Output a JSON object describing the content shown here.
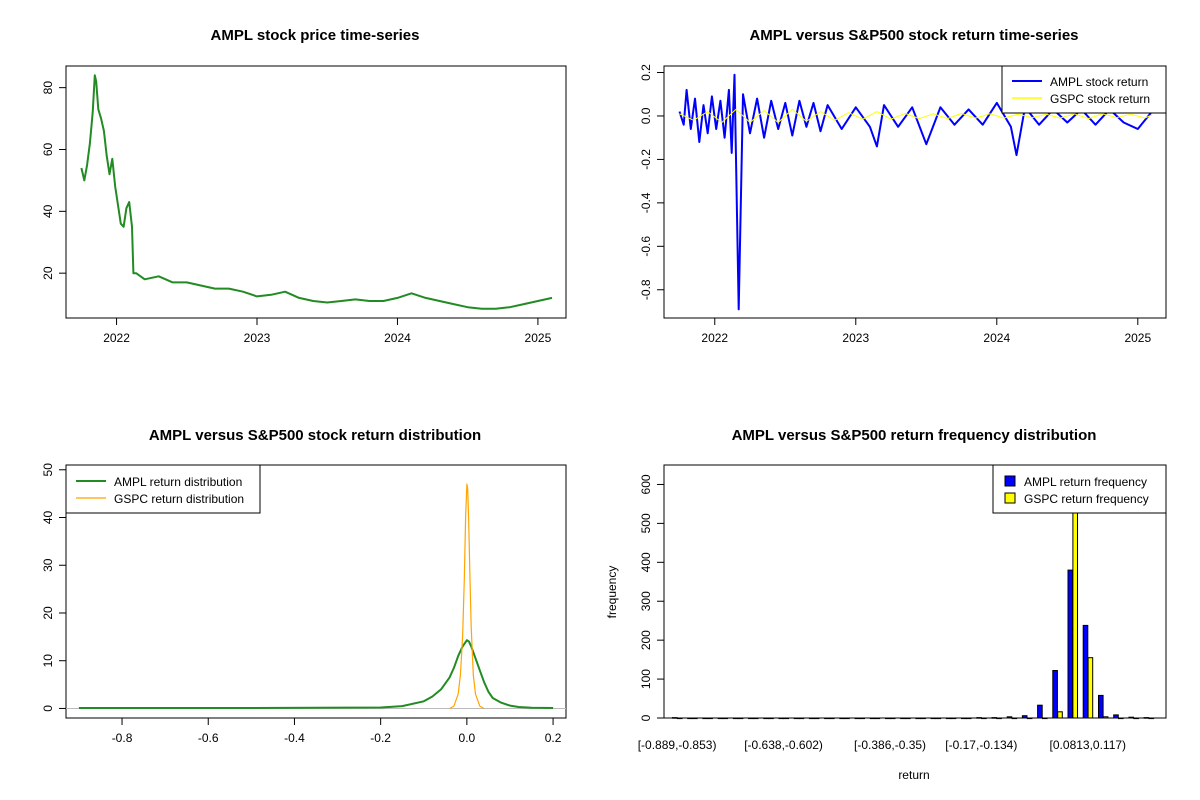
{
  "chart_data": [
    {
      "type": "line",
      "title": "AMPL stock price time-series",
      "xlabel": "",
      "ylabel": "",
      "x_ticks": [
        "2022",
        "2023",
        "2024",
        "2025"
      ],
      "xlim": [
        2021.64,
        2025.2
      ],
      "ylim": [
        5.5,
        87
      ],
      "y_ticks": [
        "20",
        "40",
        "60",
        "80"
      ],
      "series": [
        {
          "name": "AMPL stock price",
          "color": "#228B22",
          "x": [
            2021.75,
            2021.77,
            2021.79,
            2021.81,
            2021.83,
            2021.845,
            2021.855,
            2021.87,
            2021.89,
            2021.91,
            2021.93,
            2021.95,
            2021.97,
            2021.99,
            2022.01,
            2022.03,
            2022.05,
            2022.07,
            2022.09,
            2022.11,
            2022.12,
            2022.14,
            2022.2,
            2022.3,
            2022.4,
            2022.5,
            2022.6,
            2022.7,
            2022.8,
            2022.9,
            2023.0,
            2023.1,
            2023.2,
            2023.3,
            2023.4,
            2023.5,
            2023.6,
            2023.7,
            2023.8,
            2023.9,
            2024.0,
            2024.1,
            2024.2,
            2024.3,
            2024.4,
            2024.5,
            2024.6,
            2024.7,
            2024.8,
            2024.9,
            2025.0,
            2025.1
          ],
          "values": [
            54,
            50,
            55,
            62,
            72,
            84,
            82,
            73,
            70,
            66,
            58,
            52,
            57,
            48,
            42,
            36,
            35,
            41,
            43,
            35,
            20,
            20,
            18,
            19,
            17,
            17,
            16,
            15,
            15,
            14,
            12.5,
            13,
            14,
            12,
            11,
            10.5,
            11,
            11.5,
            11,
            11,
            12,
            13.5,
            12,
            11,
            10,
            9,
            8.5,
            8.5,
            9,
            10,
            11,
            12
          ]
        }
      ]
    },
    {
      "type": "line",
      "title": "AMPL versus S&P500 stock return time-series",
      "xlabel": "",
      "ylabel": "",
      "x_ticks": [
        "2022",
        "2023",
        "2024",
        "2025"
      ],
      "xlim": [
        2021.64,
        2025.2
      ],
      "ylim": [
        -0.93,
        0.23
      ],
      "y_ticks": [
        "-0.8",
        "-0.6",
        "-0.4",
        "-0.2",
        "0.0",
        "0.2"
      ],
      "legend": [
        "AMPL stock return",
        "GSPC stock return"
      ],
      "legend_position": "top-right",
      "series": [
        {
          "name": "AMPL stock return",
          "color": "#0000FF",
          "x": [
            2021.75,
            2021.78,
            2021.8,
            2021.83,
            2021.86,
            2021.89,
            2021.92,
            2021.95,
            2021.98,
            2022.01,
            2022.04,
            2022.07,
            2022.1,
            2022.12,
            2022.14,
            2022.17,
            2022.2,
            2022.25,
            2022.3,
            2022.35,
            2022.4,
            2022.45,
            2022.5,
            2022.55,
            2022.6,
            2022.65,
            2022.7,
            2022.75,
            2022.8,
            2022.9,
            2023.0,
            2023.1,
            2023.15,
            2023.2,
            2023.3,
            2023.4,
            2023.5,
            2023.6,
            2023.7,
            2023.8,
            2023.9,
            2024.0,
            2024.1,
            2024.14,
            2024.2,
            2024.3,
            2024.4,
            2024.5,
            2024.6,
            2024.7,
            2024.8,
            2024.9,
            2025.0,
            2025.1
          ],
          "values": [
            0.02,
            -0.04,
            0.12,
            -0.06,
            0.08,
            -0.12,
            0.05,
            -0.08,
            0.09,
            -0.06,
            0.07,
            -0.1,
            0.12,
            -0.17,
            0.19,
            -0.89,
            0.1,
            -0.08,
            0.08,
            -0.1,
            0.07,
            -0.06,
            0.06,
            -0.09,
            0.07,
            -0.05,
            0.06,
            -0.07,
            0.05,
            -0.06,
            0.04,
            -0.05,
            -0.14,
            0.05,
            -0.05,
            0.04,
            -0.13,
            0.04,
            -0.04,
            0.03,
            -0.04,
            0.06,
            -0.05,
            -0.18,
            0.04,
            -0.04,
            0.03,
            -0.03,
            0.03,
            -0.04,
            0.03,
            -0.03,
            -0.06,
            0.02
          ]
        },
        {
          "name": "GSPC stock return",
          "color": "#FFFF00",
          "x": [
            2021.75,
            2021.85,
            2021.95,
            2022.05,
            2022.15,
            2022.25,
            2022.35,
            2022.45,
            2022.55,
            2022.65,
            2022.75,
            2022.85,
            2022.95,
            2023.05,
            2023.15,
            2023.25,
            2023.35,
            2023.45,
            2023.55,
            2023.65,
            2023.75,
            2023.85,
            2023.95,
            2024.05,
            2024.15,
            2024.25,
            2024.35,
            2024.45,
            2024.55,
            2024.65,
            2024.75,
            2024.85,
            2024.95,
            2025.05,
            2025.1
          ],
          "values": [
            0.01,
            -0.02,
            0.02,
            -0.03,
            0.03,
            -0.03,
            0.025,
            -0.03,
            0.03,
            -0.025,
            0.02,
            -0.02,
            0.015,
            -0.015,
            0.02,
            -0.015,
            0.012,
            -0.012,
            0.01,
            -0.012,
            0.012,
            -0.01,
            0.01,
            -0.01,
            0.008,
            -0.008,
            0.008,
            -0.01,
            0.01,
            -0.012,
            0.01,
            -0.008,
            0.008,
            -0.01,
            0.005
          ]
        }
      ]
    },
    {
      "type": "line",
      "title": "AMPL versus S&P500 stock return distribution",
      "xlabel": "",
      "ylabel": "",
      "xlim": [
        -0.93,
        0.23
      ],
      "ylim": [
        -2,
        51
      ],
      "x_ticks": [
        "-0.8",
        "-0.6",
        "-0.4",
        "-0.2",
        "0.0",
        "0.2"
      ],
      "y_ticks": [
        "0",
        "10",
        "20",
        "30",
        "40",
        "50"
      ],
      "legend": [
        "AMPL return distribution",
        "GSPC return distribution"
      ],
      "legend_position": "top-left",
      "series": [
        {
          "name": "AMPL return distribution",
          "color": "#228B22",
          "x": [
            -0.9,
            -0.5,
            -0.2,
            -0.15,
            -0.1,
            -0.08,
            -0.06,
            -0.04,
            -0.03,
            -0.02,
            -0.01,
            0.0,
            0.005,
            0.01,
            0.02,
            0.03,
            0.04,
            0.05,
            0.06,
            0.08,
            0.1,
            0.12,
            0.15,
            0.2
          ],
          "values": [
            0.1,
            0.1,
            0.2,
            0.5,
            1.5,
            2.5,
            4,
            6.5,
            8.5,
            11,
            13,
            14.3,
            14,
            13,
            10.5,
            8,
            5.5,
            3.5,
            2.2,
            1.2,
            0.6,
            0.3,
            0.15,
            0.1
          ]
        },
        {
          "name": "GSPC return distribution",
          "color": "#FFA500",
          "x": [
            -0.04,
            -0.03,
            -0.02,
            -0.015,
            -0.01,
            -0.006,
            -0.003,
            0.0,
            0.002,
            0.004,
            0.007,
            0.01,
            0.015,
            0.02,
            0.03,
            0.04
          ],
          "values": [
            0,
            0.5,
            3,
            7,
            15,
            27,
            40,
            47,
            46,
            40,
            28,
            17,
            7,
            3,
            0.5,
            0
          ]
        }
      ]
    },
    {
      "type": "bar",
      "title": "AMPL versus S&P500 return frequency distribution",
      "xlabel": "return",
      "ylabel": "frequency",
      "ylim": [
        0,
        650
      ],
      "y_ticks": [
        "0",
        "100",
        "200",
        "300",
        "400",
        "500",
        "600"
      ],
      "x_tick_labels": [
        "[-0.889,-0.853)",
        "[-0.638,-0.602)",
        "[-0.386,-0.35)",
        "[-0.17,-0.134)",
        "[0.0813,0.117)"
      ],
      "x_tick_bins": [
        0,
        7,
        14,
        20,
        27
      ],
      "legend": [
        "AMPL return frequency",
        "GSPC return frequency"
      ],
      "legend_position": "top-right",
      "series": [
        {
          "name": "AMPL return frequency",
          "color": "#0000FF",
          "values": [
            1,
            0,
            0,
            0,
            0,
            0,
            0,
            0,
            0,
            0,
            0,
            0,
            0,
            0,
            0,
            0,
            0,
            0,
            0,
            0,
            1,
            1,
            3,
            6,
            33,
            122,
            380,
            238,
            58,
            8,
            2,
            1
          ]
        },
        {
          "name": "GSPC return frequency",
          "color": "#FFFF00",
          "values": [
            0,
            0,
            0,
            0,
            0,
            0,
            0,
            0,
            0,
            0,
            0,
            0,
            0,
            0,
            0,
            0,
            0,
            0,
            0,
            0,
            0,
            0,
            0,
            0,
            0,
            16,
            560,
            155,
            3,
            0,
            0,
            0
          ]
        }
      ]
    }
  ]
}
